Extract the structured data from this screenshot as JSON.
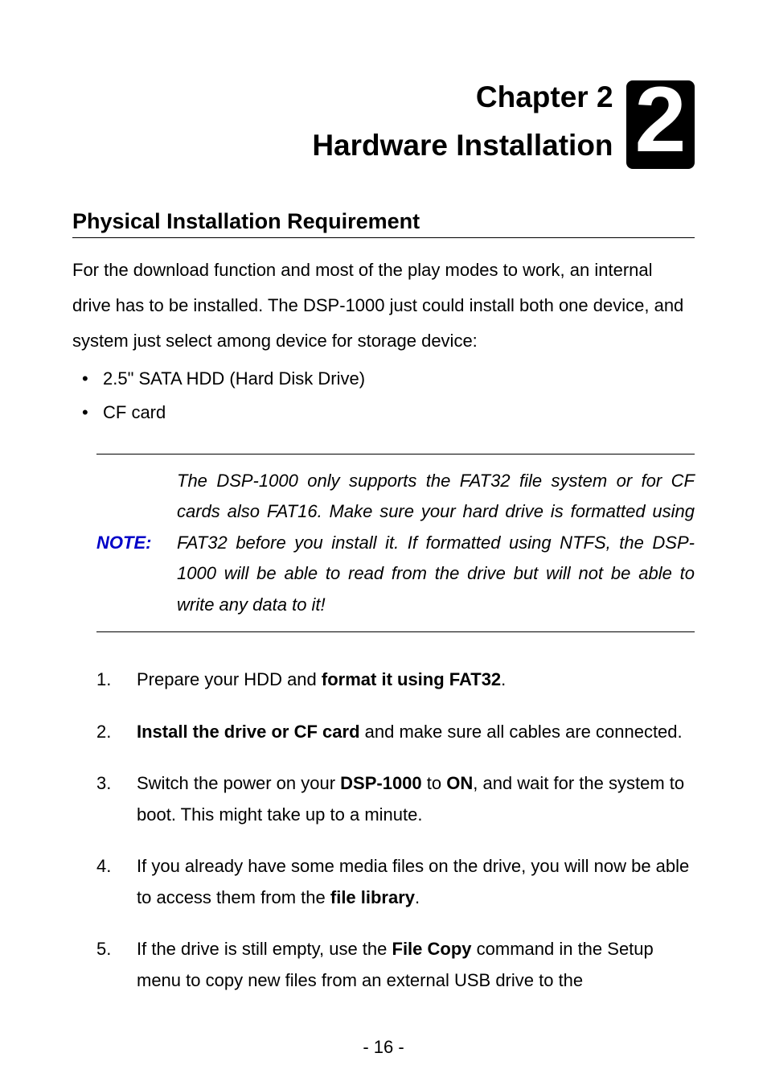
{
  "chapter": {
    "label": "Chapter 2",
    "title": "Hardware Installation",
    "number": "2"
  },
  "section": {
    "title": "Physical Installation Requirement",
    "intro": "For the download function and most of the play modes to work, an internal drive has to be installed. The DSP-1000 just could install both one device, and system just select among device for storage device:",
    "bullets": [
      "2.5\" SATA HDD (Hard Disk Drive)",
      "CF card"
    ]
  },
  "note": {
    "label": "NOTE:",
    "text": "The DSP-1000 only supports the FAT32 file system or for CF cards also FAT16. Make sure your hard drive is formatted using FAT32 before you install it. If formatted using NTFS, the DSP-1000 will be able to read from the drive but will not be able to write any data to it!"
  },
  "steps": [
    {
      "parts": [
        {
          "text": "Prepare your HDD and ",
          "bold": false
        },
        {
          "text": "format it using FAT32",
          "bold": true
        },
        {
          "text": ".",
          "bold": false
        }
      ]
    },
    {
      "parts": [
        {
          "text": "Install the drive or CF card",
          "bold": true
        },
        {
          "text": " and make sure all cables are connected.",
          "bold": false
        }
      ]
    },
    {
      "parts": [
        {
          "text": "Switch the power on your ",
          "bold": false
        },
        {
          "text": "DSP-1000",
          "bold": true
        },
        {
          "text": " to ",
          "bold": false
        },
        {
          "text": "ON",
          "bold": true
        },
        {
          "text": ", and wait for the system to boot. This might take up to a minute.",
          "bold": false
        }
      ]
    },
    {
      "parts": [
        {
          "text": "If you already have some media files on the drive, you will now be able to access them from the ",
          "bold": false
        },
        {
          "text": "file library",
          "bold": true
        },
        {
          "text": ".",
          "bold": false
        }
      ]
    },
    {
      "parts": [
        {
          "text": "If the drive is still empty, use the ",
          "bold": false
        },
        {
          "text": "File Copy",
          "bold": true
        },
        {
          "text": " command in the Setup menu to copy new files from an external USB drive to the",
          "bold": false
        }
      ]
    }
  ],
  "pageNumber": "- 16 -"
}
